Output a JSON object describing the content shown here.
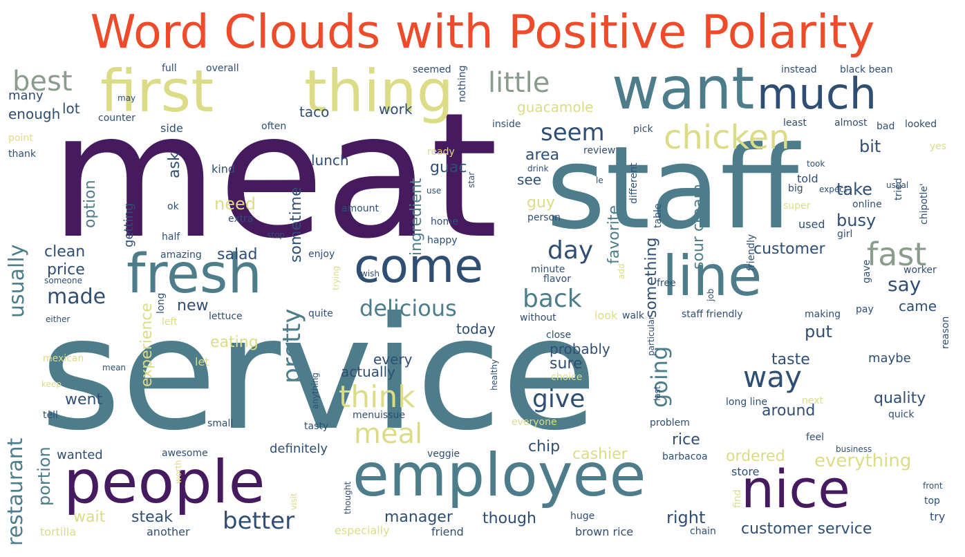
{
  "title": "Word Clouds with Positive Polarity",
  "title_color": "#ee4b2b",
  "palette": {
    "dark_purple": "#461a5f",
    "navy": "#2f4e73",
    "teal": "#4d7d8b",
    "sage": "#8a9c8c",
    "olive": "#c2c582",
    "lime": "#dcdc86"
  },
  "words": [
    {
      "text": "meat",
      "c": "dark_purple"
    },
    {
      "text": "service",
      "c": "teal"
    },
    {
      "text": "staff",
      "c": "teal"
    },
    {
      "text": "first",
      "c": "lime"
    },
    {
      "text": "thing",
      "c": "lime"
    },
    {
      "text": "want",
      "c": "teal"
    },
    {
      "text": "much",
      "c": "navy"
    },
    {
      "text": "best",
      "c": "sage"
    },
    {
      "text": "little",
      "c": "sage"
    },
    {
      "text": "people",
      "c": "dark_purple"
    },
    {
      "text": "employee",
      "c": "teal"
    },
    {
      "text": "nice",
      "c": "dark_purple"
    },
    {
      "text": "fresh",
      "c": "teal"
    },
    {
      "text": "come",
      "c": "navy"
    },
    {
      "text": "line",
      "c": "teal"
    },
    {
      "text": "restaurant",
      "c": "teal"
    },
    {
      "text": "usually",
      "c": "teal"
    },
    {
      "text": "chicken",
      "c": "lime"
    },
    {
      "text": "seem",
      "c": "navy"
    },
    {
      "text": "fast",
      "c": "sage"
    },
    {
      "text": "delicious",
      "c": "teal"
    },
    {
      "text": "back",
      "c": "teal"
    },
    {
      "text": "made",
      "c": "navy"
    },
    {
      "text": "day",
      "c": "navy"
    },
    {
      "text": "say",
      "c": "navy"
    },
    {
      "text": "think",
      "c": "lime"
    },
    {
      "text": "way",
      "c": "navy"
    },
    {
      "text": "give",
      "c": "navy"
    },
    {
      "text": "pretty",
      "c": "teal"
    },
    {
      "text": "going",
      "c": "teal"
    },
    {
      "text": "meal",
      "c": "lime"
    },
    {
      "text": "better",
      "c": "navy"
    },
    {
      "text": "guacamole",
      "c": "lime"
    },
    {
      "text": "taco",
      "c": "navy"
    },
    {
      "text": "work",
      "c": "navy"
    },
    {
      "text": "lot",
      "c": "navy"
    },
    {
      "text": "many",
      "c": "navy"
    },
    {
      "text": "enough",
      "c": "navy"
    },
    {
      "text": "ingredient",
      "c": "teal"
    },
    {
      "text": "sometime",
      "c": "navy"
    },
    {
      "text": "area",
      "c": "navy"
    },
    {
      "text": "guac",
      "c": "navy"
    },
    {
      "text": "lunch",
      "c": "navy"
    },
    {
      "text": "ask",
      "c": "navy"
    },
    {
      "text": "see",
      "c": "navy"
    },
    {
      "text": "need",
      "c": "lime"
    },
    {
      "text": "guy",
      "c": "lime"
    },
    {
      "text": "take",
      "c": "navy"
    },
    {
      "text": "busy",
      "c": "navy"
    },
    {
      "text": "bit",
      "c": "navy"
    },
    {
      "text": "favorite",
      "c": "teal"
    },
    {
      "text": "sour cream",
      "c": "teal"
    },
    {
      "text": "customer",
      "c": "navy"
    },
    {
      "text": "option",
      "c": "teal"
    },
    {
      "text": "getting",
      "c": "navy"
    },
    {
      "text": "clean",
      "c": "navy"
    },
    {
      "text": "price",
      "c": "navy"
    },
    {
      "text": "salad",
      "c": "navy"
    },
    {
      "text": "new",
      "c": "navy"
    },
    {
      "text": "experience",
      "c": "lime"
    },
    {
      "text": "something",
      "c": "navy"
    },
    {
      "text": "put",
      "c": "navy"
    },
    {
      "text": "came",
      "c": "navy"
    },
    {
      "text": "today",
      "c": "navy"
    },
    {
      "text": "every",
      "c": "navy"
    },
    {
      "text": "actually",
      "c": "navy"
    },
    {
      "text": "sure",
      "c": "navy"
    },
    {
      "text": "probably",
      "c": "navy"
    },
    {
      "text": "taste",
      "c": "navy"
    },
    {
      "text": "eating",
      "c": "lime"
    },
    {
      "text": "went",
      "c": "navy"
    },
    {
      "text": "around",
      "c": "navy"
    },
    {
      "text": "quality",
      "c": "navy"
    },
    {
      "text": "maybe",
      "c": "navy"
    },
    {
      "text": "rice",
      "c": "navy"
    },
    {
      "text": "chip",
      "c": "navy"
    },
    {
      "text": "cashier",
      "c": "lime"
    },
    {
      "text": "ordered",
      "c": "lime"
    },
    {
      "text": "everything",
      "c": "lime"
    },
    {
      "text": "portion",
      "c": "teal"
    },
    {
      "text": "wanted",
      "c": "navy"
    },
    {
      "text": "definitely",
      "c": "navy"
    },
    {
      "text": "wait",
      "c": "lime"
    },
    {
      "text": "steak",
      "c": "navy"
    },
    {
      "text": "manager",
      "c": "navy"
    },
    {
      "text": "though",
      "c": "navy"
    },
    {
      "text": "right",
      "c": "navy"
    },
    {
      "text": "customer service",
      "c": "navy"
    },
    {
      "text": "tortilla",
      "c": "lime"
    },
    {
      "text": "another",
      "c": "navy"
    },
    {
      "text": "especially",
      "c": "lime"
    },
    {
      "text": "friend",
      "c": "navy"
    },
    {
      "text": "brown rice",
      "c": "navy"
    },
    {
      "text": "chain",
      "c": "navy"
    },
    {
      "text": "full",
      "c": "navy"
    },
    {
      "text": "overall",
      "c": "navy"
    },
    {
      "text": "seemed",
      "c": "navy"
    },
    {
      "text": "nothing",
      "c": "navy"
    },
    {
      "text": "instead",
      "c": "navy"
    },
    {
      "text": "black bean",
      "c": "navy"
    },
    {
      "text": "may",
      "c": "navy"
    },
    {
      "text": "counter",
      "c": "navy"
    },
    {
      "text": "often",
      "c": "navy"
    },
    {
      "text": "inside",
      "c": "navy"
    },
    {
      "text": "pick",
      "c": "navy"
    },
    {
      "text": "least",
      "c": "navy"
    },
    {
      "text": "almost",
      "c": "navy"
    },
    {
      "text": "bad",
      "c": "navy"
    },
    {
      "text": "looked",
      "c": "navy"
    },
    {
      "text": "point",
      "c": "lime"
    },
    {
      "text": "side",
      "c": "navy"
    },
    {
      "text": "thank",
      "c": "navy"
    },
    {
      "text": "ready",
      "c": "lime"
    },
    {
      "text": "review",
      "c": "navy"
    },
    {
      "text": "yes",
      "c": "lime"
    },
    {
      "text": "took",
      "c": "navy"
    },
    {
      "text": "kind",
      "c": "navy"
    },
    {
      "text": "drink",
      "c": "navy"
    },
    {
      "text": "le",
      "c": "navy"
    },
    {
      "text": "different",
      "c": "navy"
    },
    {
      "text": "told",
      "c": "navy"
    },
    {
      "text": "usual",
      "c": "navy"
    },
    {
      "text": "use",
      "c": "navy"
    },
    {
      "text": "star",
      "c": "navy"
    },
    {
      "text": "big",
      "c": "navy"
    },
    {
      "text": "expect",
      "c": "navy"
    },
    {
      "text": "ok",
      "c": "navy"
    },
    {
      "text": "amount",
      "c": "navy"
    },
    {
      "text": "super",
      "c": "lime"
    },
    {
      "text": "online",
      "c": "navy"
    },
    {
      "text": "tried",
      "c": "navy"
    },
    {
      "text": "chipotle'",
      "c": "navy"
    },
    {
      "text": "extra",
      "c": "navy"
    },
    {
      "text": "home",
      "c": "navy"
    },
    {
      "text": "person",
      "c": "navy"
    },
    {
      "text": "table",
      "c": "navy"
    },
    {
      "text": "used",
      "c": "navy"
    },
    {
      "text": "girl",
      "c": "navy"
    },
    {
      "text": "half",
      "c": "navy"
    },
    {
      "text": "stop",
      "c": "navy"
    },
    {
      "text": "amazing",
      "c": "navy"
    },
    {
      "text": "happy",
      "c": "navy"
    },
    {
      "text": "enjoy",
      "c": "navy"
    },
    {
      "text": "minute",
      "c": "navy"
    },
    {
      "text": "friendly",
      "c": "navy"
    },
    {
      "text": "worker",
      "c": "navy"
    },
    {
      "text": "someone",
      "c": "navy"
    },
    {
      "text": "wish",
      "c": "navy"
    },
    {
      "text": "flavor",
      "c": "navy"
    },
    {
      "text": "add",
      "c": "lime"
    },
    {
      "text": "free",
      "c": "navy"
    },
    {
      "text": "job",
      "c": "navy"
    },
    {
      "text": "gave",
      "c": "navy"
    },
    {
      "text": "long",
      "c": "navy"
    },
    {
      "text": "trying",
      "c": "lime"
    },
    {
      "text": "walk",
      "c": "navy"
    },
    {
      "text": "pay",
      "c": "navy"
    },
    {
      "text": "either",
      "c": "navy"
    },
    {
      "text": "lettuce",
      "c": "navy"
    },
    {
      "text": "quite",
      "c": "navy"
    },
    {
      "text": "without",
      "c": "navy"
    },
    {
      "text": "look",
      "c": "lime"
    },
    {
      "text": "staff friendly",
      "c": "navy"
    },
    {
      "text": "making",
      "c": "navy"
    },
    {
      "text": "left",
      "c": "lime"
    },
    {
      "text": "close",
      "c": "navy"
    },
    {
      "text": "particular",
      "c": "navy"
    },
    {
      "text": "reason",
      "c": "navy"
    },
    {
      "text": "mexican",
      "c": "lime"
    },
    {
      "text": "let",
      "c": "lime"
    },
    {
      "text": "healthy",
      "c": "navy"
    },
    {
      "text": "mean",
      "c": "navy"
    },
    {
      "text": "choice",
      "c": "lime"
    },
    {
      "text": "keep",
      "c": "lime"
    },
    {
      "text": "anything",
      "c": "navy"
    },
    {
      "text": "last",
      "c": "navy"
    },
    {
      "text": "long line",
      "c": "navy"
    },
    {
      "text": "next",
      "c": "lime"
    },
    {
      "text": "quick",
      "c": "navy"
    },
    {
      "text": "tell",
      "c": "navy"
    },
    {
      "text": "small",
      "c": "navy"
    },
    {
      "text": "menuissue",
      "c": "navy"
    },
    {
      "text": "everyone",
      "c": "lime"
    },
    {
      "text": "problem",
      "c": "navy"
    },
    {
      "text": "tasty",
      "c": "navy"
    },
    {
      "text": "feel",
      "c": "navy"
    },
    {
      "text": "business",
      "c": "navy"
    },
    {
      "text": "worth",
      "c": "lime"
    },
    {
      "text": "awesome",
      "c": "navy"
    },
    {
      "text": "veggie",
      "c": "navy"
    },
    {
      "text": "barbacoa",
      "c": "navy"
    },
    {
      "text": "store",
      "c": "navy"
    },
    {
      "text": "find",
      "c": "lime"
    },
    {
      "text": "front",
      "c": "navy"
    },
    {
      "text": "top",
      "c": "navy"
    },
    {
      "text": "visit",
      "c": "lime"
    },
    {
      "text": "thought",
      "c": "navy"
    },
    {
      "text": "huge",
      "c": "navy"
    },
    {
      "text": "try",
      "c": "navy"
    }
  ]
}
